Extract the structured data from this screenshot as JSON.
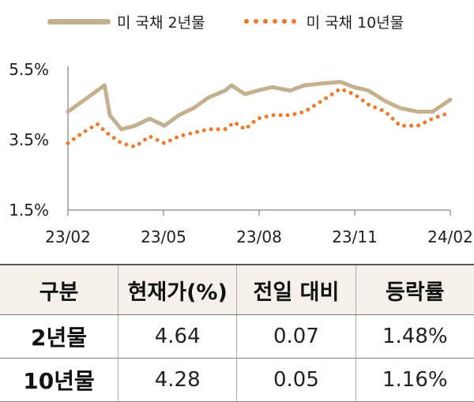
{
  "legend": {
    "series_2y": "미 국채 2년물",
    "series_10y": "미 국채 10년물"
  },
  "chart_data": {
    "type": "line",
    "y_ticks": [
      "5.5%",
      "3.5%",
      "1.5%"
    ],
    "y_tick_values": [
      5.5,
      3.5,
      1.5
    ],
    "ylim": [
      1.5,
      5.5
    ],
    "x_ticks": [
      "23/02",
      "23/05",
      "23/08",
      "23/11",
      "24/02"
    ],
    "xlim": [
      "2023-02-01",
      "2024-02-01"
    ],
    "grid": false,
    "legend_position": "top",
    "colors": {
      "us2y": "#c4b08f",
      "us10y": "#ee7c2f"
    },
    "series": [
      {
        "name": "미 국채 2년물",
        "style": "solid",
        "x": [
          "2023-02-01",
          "2023-02-15",
          "2023-03-01",
          "2023-03-08",
          "2023-03-13",
          "2023-03-24",
          "2023-04-06",
          "2023-04-20",
          "2023-05-04",
          "2023-05-18",
          "2023-06-01",
          "2023-06-15",
          "2023-07-01",
          "2023-07-07",
          "2023-07-20",
          "2023-08-01",
          "2023-08-15",
          "2023-09-01",
          "2023-09-15",
          "2023-10-01",
          "2023-10-19",
          "2023-11-01",
          "2023-11-15",
          "2023-12-01",
          "2023-12-15",
          "2024-01-01",
          "2024-01-15",
          "2024-02-01"
        ],
        "values": [
          4.3,
          4.6,
          4.9,
          5.05,
          4.2,
          3.8,
          3.9,
          4.1,
          3.9,
          4.2,
          4.4,
          4.7,
          4.9,
          5.05,
          4.8,
          4.9,
          5.0,
          4.9,
          5.05,
          5.1,
          5.15,
          5.0,
          4.9,
          4.6,
          4.4,
          4.3,
          4.3,
          4.64
        ]
      },
      {
        "name": "미 국채 10년물",
        "style": "dotted",
        "x": [
          "2023-02-01",
          "2023-02-15",
          "2023-03-01",
          "2023-03-10",
          "2023-03-24",
          "2023-04-06",
          "2023-04-20",
          "2023-05-04",
          "2023-05-18",
          "2023-06-01",
          "2023-06-15",
          "2023-07-01",
          "2023-07-10",
          "2023-07-20",
          "2023-08-01",
          "2023-08-15",
          "2023-09-01",
          "2023-09-15",
          "2023-10-01",
          "2023-10-19",
          "2023-11-01",
          "2023-11-15",
          "2023-12-01",
          "2023-12-15",
          "2024-01-01",
          "2024-01-15",
          "2024-02-01"
        ],
        "values": [
          3.4,
          3.7,
          3.95,
          3.7,
          3.4,
          3.3,
          3.6,
          3.4,
          3.6,
          3.7,
          3.8,
          3.8,
          4.0,
          3.8,
          4.1,
          4.2,
          4.2,
          4.3,
          4.6,
          4.95,
          4.8,
          4.5,
          4.3,
          3.9,
          3.9,
          4.1,
          4.28
        ]
      }
    ]
  },
  "table": {
    "headers": [
      "구분",
      "현재가(%)",
      "전일 대비",
      "등락률"
    ],
    "rows": [
      {
        "label": "2년물",
        "price": "4.64",
        "change": "0.07",
        "rate": "1.48%"
      },
      {
        "label": "10년물",
        "price": "4.28",
        "change": "0.05",
        "rate": "1.16%"
      }
    ]
  }
}
